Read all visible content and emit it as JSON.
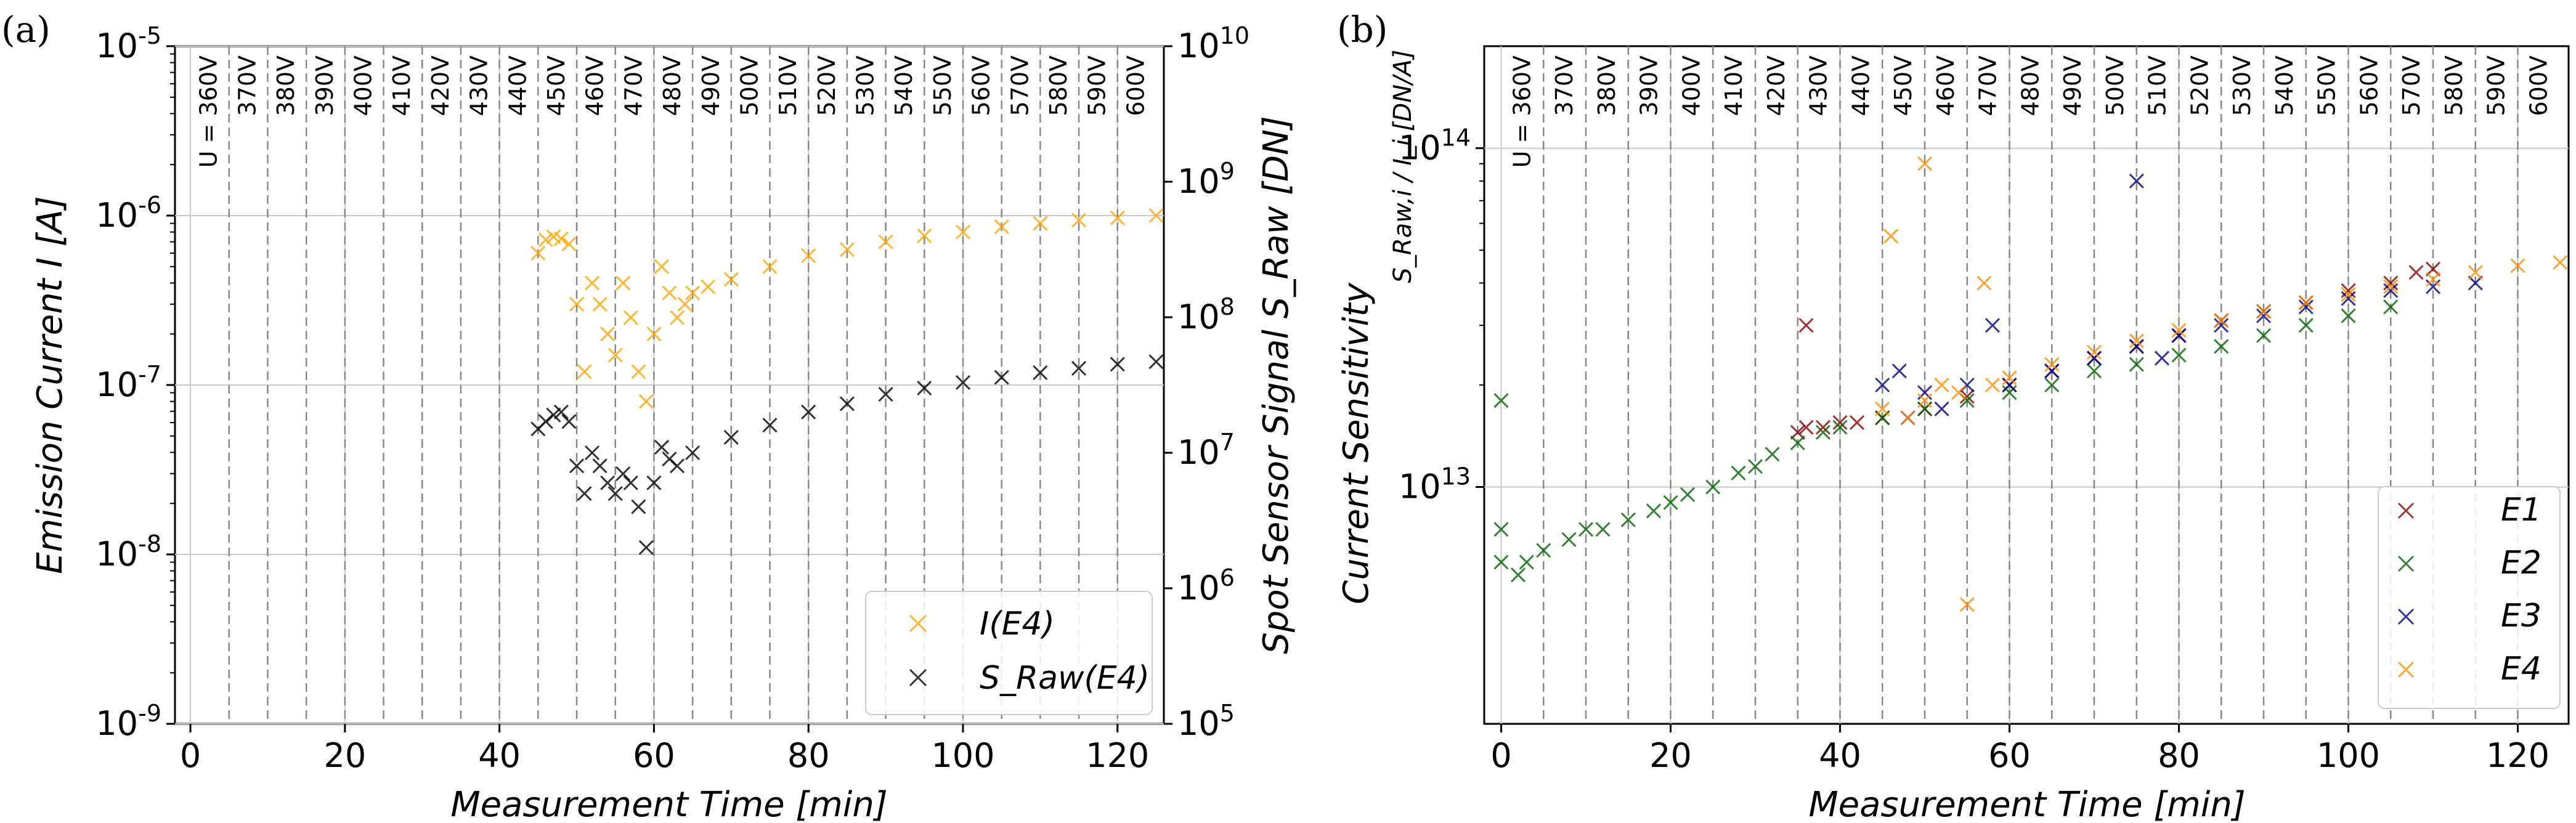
{
  "chart_data": [
    {
      "panel": "(a)",
      "type": "scatter",
      "title": "",
      "xlabel": "Measurement Time [min]",
      "ylabel": "Emission Current I [A]",
      "ylabel_right": "Spot Sensor Signal S_Raw [DN]",
      "xlim": [
        -2,
        126
      ],
      "ylim": [
        1e-09,
        1e-05
      ],
      "ylim_right": [
        100000.0,
        10000000000.0
      ],
      "xticks": [
        "0",
        "20",
        "40",
        "60",
        "80",
        "100",
        "120"
      ],
      "yticks": [
        "10^-9",
        "10^-8",
        "10^-7",
        "10^-6",
        "10^-5"
      ],
      "yticks_right": [
        "10^5",
        "10^6",
        "10^7",
        "10^8",
        "10^9",
        "10^10"
      ],
      "grid": true,
      "legend_position": "bottom-right",
      "voltage_annotation_prefix": "U = ",
      "voltage_steps": [
        "360V",
        "370V",
        "380V",
        "390V",
        "400V",
        "410V",
        "420V",
        "430V",
        "440V",
        "450V",
        "460V",
        "470V",
        "480V",
        "490V",
        "500V",
        "510V",
        "520V",
        "530V",
        "540V",
        "550V",
        "560V",
        "570V",
        "580V",
        "590V",
        "600V"
      ],
      "series": [
        {
          "name": "I(E4)",
          "axis": "left",
          "color": "#ffa500",
          "marker": "x",
          "points": [
            [
              45,
              6e-07
            ],
            [
              46,
              7.2e-07
            ],
            [
              47,
              7.5e-07
            ],
            [
              48,
              7.3e-07
            ],
            [
              49,
              6.8e-07
            ],
            [
              50,
              3e-07
            ],
            [
              51,
              1.2e-07
            ],
            [
              52,
              4e-07
            ],
            [
              53,
              3e-07
            ],
            [
              54,
              2e-07
            ],
            [
              55,
              1.5e-07
            ],
            [
              56,
              4e-07
            ],
            [
              57,
              2.5e-07
            ],
            [
              58,
              1.2e-07
            ],
            [
              59,
              8e-08
            ],
            [
              60,
              2e-07
            ],
            [
              61,
              5e-07
            ],
            [
              62,
              3.5e-07
            ],
            [
              63,
              2.5e-07
            ],
            [
              64,
              3e-07
            ],
            [
              65,
              3.5e-07
            ],
            [
              67,
              3.8e-07
            ],
            [
              70,
              4.2e-07
            ],
            [
              75,
              5e-07
            ],
            [
              80,
              5.8e-07
            ],
            [
              85,
              6.3e-07
            ],
            [
              90,
              7e-07
            ],
            [
              95,
              7.6e-07
            ],
            [
              100,
              8e-07
            ],
            [
              105,
              8.6e-07
            ],
            [
              110,
              9e-07
            ],
            [
              115,
              9.4e-07
            ],
            [
              120,
              9.7e-07
            ],
            [
              125,
              1e-06
            ]
          ]
        },
        {
          "name": "S_Raw(E4)",
          "axis": "right",
          "color": "#000000",
          "marker": "x",
          "points": [
            [
              45,
              15000000.0
            ],
            [
              46,
              17000000.0
            ],
            [
              47,
              19000000.0
            ],
            [
              48,
              20000000.0
            ],
            [
              49,
              17000000.0
            ],
            [
              50,
              8000000.0
            ],
            [
              51,
              5000000.0
            ],
            [
              52,
              10000000.0
            ],
            [
              53,
              8000000.0
            ],
            [
              54,
              6000000.0
            ],
            [
              55,
              5000000.0
            ],
            [
              56,
              7000000.0
            ],
            [
              57,
              6000000.0
            ],
            [
              58,
              4000000.0
            ],
            [
              59,
              2000000.0
            ],
            [
              60,
              6000000.0
            ],
            [
              61,
              11000000.0
            ],
            [
              62,
              9000000.0
            ],
            [
              63,
              8000000.0
            ],
            [
              65,
              10000000.0
            ],
            [
              70,
              13000000.0
            ],
            [
              75,
              16000000.0
            ],
            [
              80,
              20000000.0
            ],
            [
              85,
              23000000.0
            ],
            [
              90,
              27000000.0
            ],
            [
              95,
              30000000.0
            ],
            [
              100,
              33000000.0
            ],
            [
              105,
              36000000.0
            ],
            [
              110,
              39000000.0
            ],
            [
              115,
              42000000.0
            ],
            [
              120,
              45000000.0
            ],
            [
              125,
              47000000.0
            ]
          ]
        }
      ]
    },
    {
      "panel": "(b)",
      "type": "scatter",
      "title": "",
      "xlabel": "Measurement Time [min]",
      "ylabel": "Current Sensitivity",
      "ylabel_formula": "S_Raw,i / I_i [DN/A]",
      "xlim": [
        -2,
        126
      ],
      "ylim": [
        2000000000000.0,
        200000000000000.0
      ],
      "xticks": [
        "0",
        "20",
        "40",
        "60",
        "80",
        "100",
        "120"
      ],
      "yticks": [
        "10^13",
        "10^14"
      ],
      "grid": true,
      "legend_position": "bottom-right",
      "voltage_annotation_prefix": "U = ",
      "voltage_steps": [
        "360V",
        "370V",
        "380V",
        "390V",
        "400V",
        "410V",
        "420V",
        "430V",
        "440V",
        "450V",
        "460V",
        "470V",
        "480V",
        "490V",
        "500V",
        "510V",
        "520V",
        "530V",
        "540V",
        "550V",
        "560V",
        "570V",
        "580V",
        "590V",
        "600V"
      ],
      "series": [
        {
          "name": "E1",
          "color": "#8b0000",
          "marker": "x",
          "points": [
            [
              35,
              14500000000000.0
            ],
            [
              36,
              15000000000000.0
            ],
            [
              38,
              15000000000000.0
            ],
            [
              40,
              15500000000000.0
            ],
            [
              42,
              15500000000000.0
            ],
            [
              36,
              30000000000000.0
            ],
            [
              45,
              16000000000000.0
            ],
            [
              50,
              17000000000000.0
            ],
            [
              55,
              18500000000000.0
            ],
            [
              60,
              20000000000000.0
            ],
            [
              65,
              22000000000000.0
            ],
            [
              70,
              24000000000000.0
            ],
            [
              75,
              26000000000000.0
            ],
            [
              80,
              28000000000000.0
            ],
            [
              85,
              31000000000000.0
            ],
            [
              90,
              33000000000000.0
            ],
            [
              95,
              35000000000000.0
            ],
            [
              100,
              38000000000000.0
            ],
            [
              105,
              40000000000000.0
            ],
            [
              108,
              43000000000000.0
            ],
            [
              110,
              44000000000000.0
            ]
          ]
        },
        {
          "name": "E2",
          "color": "#006400",
          "marker": "x",
          "points": [
            [
              0,
              6000000000000.0
            ],
            [
              0,
              18000000000000.0
            ],
            [
              0,
              7500000000000.0
            ],
            [
              2,
              5500000000000.0
            ],
            [
              3,
              6000000000000.0
            ],
            [
              5,
              6500000000000.0
            ],
            [
              8,
              7000000000000.0
            ],
            [
              10,
              7500000000000.0
            ],
            [
              12,
              7500000000000.0
            ],
            [
              15,
              8000000000000.0
            ],
            [
              18,
              8500000000000.0
            ],
            [
              20,
              9000000000000.0
            ],
            [
              22,
              9500000000000.0
            ],
            [
              25,
              10000000000000.0
            ],
            [
              28,
              11000000000000.0
            ],
            [
              30,
              11500000000000.0
            ],
            [
              32,
              12500000000000.0
            ],
            [
              35,
              13500000000000.0
            ],
            [
              38,
              14500000000000.0
            ],
            [
              40,
              15000000000000.0
            ],
            [
              45,
              16000000000000.0
            ],
            [
              50,
              17000000000000.0
            ],
            [
              55,
              18000000000000.0
            ],
            [
              60,
              19000000000000.0
            ],
            [
              65,
              20000000000000.0
            ],
            [
              70,
              22000000000000.0
            ],
            [
              75,
              23000000000000.0
            ],
            [
              80,
              24500000000000.0
            ],
            [
              85,
              26000000000000.0
            ],
            [
              90,
              28000000000000.0
            ],
            [
              95,
              30000000000000.0
            ],
            [
              100,
              32000000000000.0
            ],
            [
              105,
              34000000000000.0
            ]
          ]
        },
        {
          "name": "E3",
          "color": "#00008b",
          "marker": "x",
          "points": [
            [
              45,
              20000000000000.0
            ],
            [
              47,
              22000000000000.0
            ],
            [
              48,
              16000000000000.0
            ],
            [
              50,
              19000000000000.0
            ],
            [
              52,
              17000000000000.0
            ],
            [
              55,
              20000000000000.0
            ],
            [
              58,
              30000000000000.0
            ],
            [
              60,
              20000000000000.0
            ],
            [
              65,
              22000000000000.0
            ],
            [
              70,
              24000000000000.0
            ],
            [
              75,
              80000000000000.0
            ],
            [
              75,
              26000000000000.0
            ],
            [
              78,
              24000000000000.0
            ],
            [
              80,
              28000000000000.0
            ],
            [
              85,
              30000000000000.0
            ],
            [
              90,
              32000000000000.0
            ],
            [
              95,
              34000000000000.0
            ],
            [
              100,
              36000000000000.0
            ],
            [
              105,
              38000000000000.0
            ],
            [
              110,
              39000000000000.0
            ],
            [
              115,
              40000000000000.0
            ]
          ]
        },
        {
          "name": "E4",
          "color": "#ff8c00",
          "marker": "x",
          "points": [
            [
              45,
              17000000000000.0
            ],
            [
              46,
              55000000000000.0
            ],
            [
              48,
              16000000000000.0
            ],
            [
              50,
              90000000000000.0
            ],
            [
              50,
              18000000000000.0
            ],
            [
              52,
              20000000000000.0
            ],
            [
              54,
              19000000000000.0
            ],
            [
              55,
              4500000000000.0
            ],
            [
              57,
              40000000000000.0
            ],
            [
              58,
              20000000000000.0
            ],
            [
              60,
              21000000000000.0
            ],
            [
              65,
              23000000000000.0
            ],
            [
              70,
              25000000000000.0
            ],
            [
              75,
              27000000000000.0
            ],
            [
              80,
              29000000000000.0
            ],
            [
              85,
              31000000000000.0
            ],
            [
              90,
              33000000000000.0
            ],
            [
              95,
              35000000000000.0
            ],
            [
              100,
              37000000000000.0
            ],
            [
              105,
              39000000000000.0
            ],
            [
              110,
              41000000000000.0
            ],
            [
              115,
              43000000000000.0
            ],
            [
              120,
              45000000000000.0
            ],
            [
              125,
              46000000000000.0
            ]
          ]
        }
      ]
    }
  ]
}
